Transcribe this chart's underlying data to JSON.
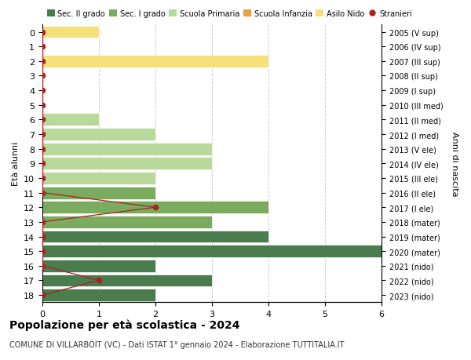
{
  "ages": [
    18,
    17,
    16,
    15,
    14,
    13,
    12,
    11,
    10,
    9,
    8,
    7,
    6,
    5,
    4,
    3,
    2,
    1,
    0
  ],
  "years": [
    "2005 (V sup)",
    "2006 (IV sup)",
    "2007 (III sup)",
    "2008 (II sup)",
    "2009 (I sup)",
    "2010 (III med)",
    "2011 (II med)",
    "2012 (I med)",
    "2013 (V ele)",
    "2014 (IV ele)",
    "2015 (III ele)",
    "2016 (II ele)",
    "2017 (I ele)",
    "2018 (mater)",
    "2019 (mater)",
    "2020 (mater)",
    "2021 (nido)",
    "2022 (nido)",
    "2023 (nido)"
  ],
  "bar_values": [
    2,
    3,
    2,
    6,
    4,
    3,
    4,
    2,
    2,
    3,
    3,
    2,
    1,
    0,
    0,
    0,
    4,
    0,
    1
  ],
  "bar_colors": [
    "#4a7c4e",
    "#4a7c4e",
    "#4a7c4e",
    "#4a7c4e",
    "#4a7c4e",
    "#7aab5e",
    "#7aab5e",
    "#7aab5e",
    "#b8d99a",
    "#b8d99a",
    "#b8d99a",
    "#b8d99a",
    "#b8d99a",
    "#e8a045",
    "#e8a045",
    "#e8a045",
    "#f5e07a",
    "#f5e07a",
    "#f5e07a"
  ],
  "stranieri_x": [
    0,
    1,
    0,
    0,
    0,
    0,
    2,
    0,
    0,
    0,
    0,
    0,
    0,
    0,
    0,
    0,
    0,
    0,
    0
  ],
  "color_sec2": "#4a7c4e",
  "color_sec1": "#7aab5e",
  "color_primaria": "#b8d99a",
  "color_infanzia": "#e8a045",
  "color_nido": "#f5e07a",
  "color_stranieri": "#aa2222",
  "title": "Popolazione per età scolastica - 2024",
  "subtitle": "COMUNE DI VILLARBOIT (VC) - Dati ISTAT 1° gennaio 2024 - Elaborazione TUTTITALIA.IT",
  "ylabel_left": "Età alunni",
  "ylabel_right": "Anni di nascita",
  "xlim": [
    0,
    6
  ],
  "legend_labels": [
    "Sec. II grado",
    "Sec. I grado",
    "Scuola Primaria",
    "Scuola Infanzia",
    "Asilo Nido",
    "Stranieri"
  ]
}
